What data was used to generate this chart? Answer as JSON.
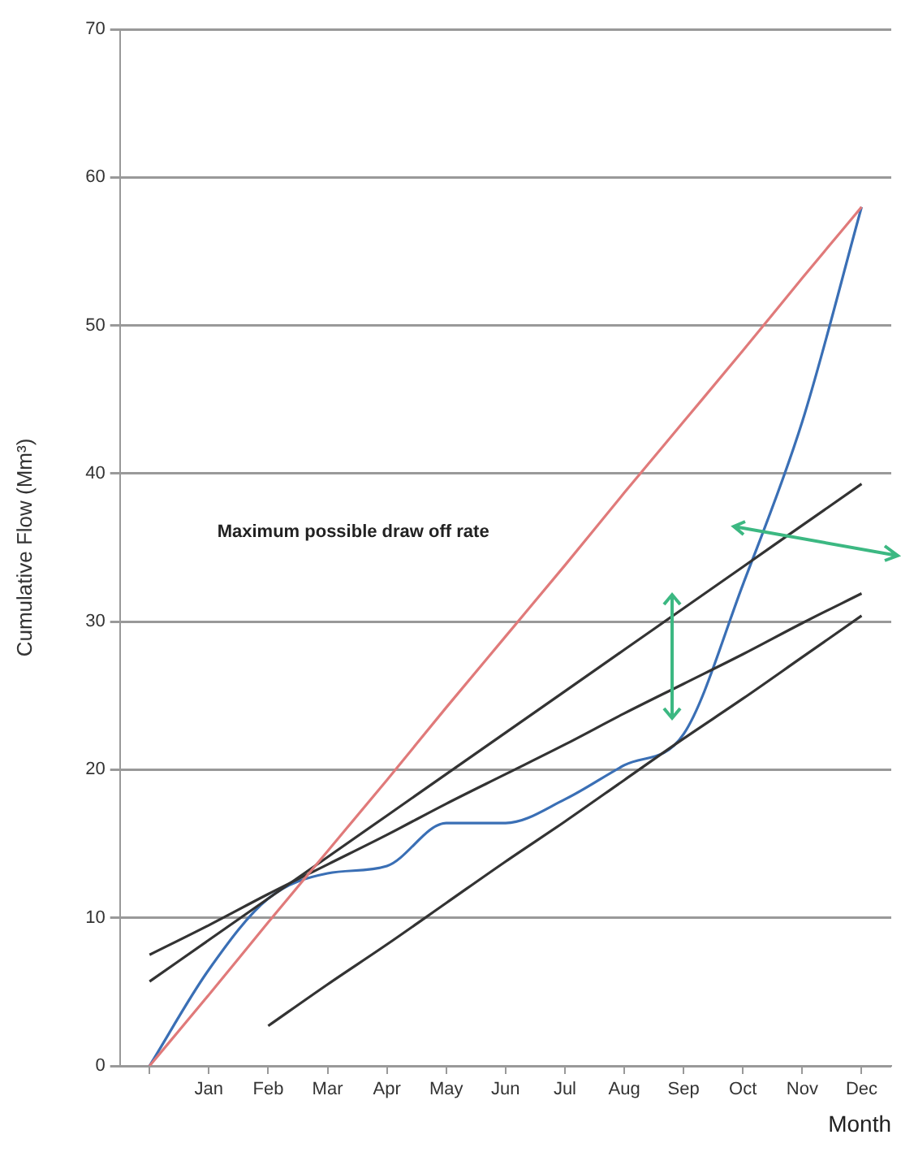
{
  "chart_data": {
    "type": "line",
    "xlabel": "Month",
    "ylabel": "Cumulative Flow (Mm³)",
    "categories": [
      null,
      "Jan",
      "Feb",
      "Mar",
      "Apr",
      "May",
      "Jun",
      "Jul",
      "Aug",
      "Sep",
      "Oct",
      "Nov",
      "Dec"
    ],
    "series": [
      {
        "color": "#e07a7a",
        "values": [
          0,
          4.8,
          9.7,
          14.5,
          19.3,
          24.2,
          29,
          33.8,
          38.7,
          43.5,
          48.3,
          53.2,
          58
        ]
      },
      {
        "color": "#333333",
        "values": [
          5.7,
          8.5,
          11.3,
          14.1,
          16.9,
          19.7,
          22.5,
          25.3,
          28.1,
          30.9,
          33.7,
          36.5,
          39.3
        ]
      },
      {
        "color": "#333333",
        "values": [
          7.5,
          9.5,
          11.6,
          13.6,
          15.6,
          17.7,
          19.7,
          21.7,
          23.8,
          25.8,
          27.8,
          29.9,
          31.9
        ]
      },
      {
        "color": "#333333",
        "values": [
          null,
          null,
          2.7,
          5.5,
          8.2,
          11.0,
          13.8,
          16.5,
          19.3,
          22.1,
          24.8,
          27.6,
          30.4
        ]
      },
      {
        "color": "#3a6fb5",
        "values": [
          0,
          6.5,
          11.3,
          13.0,
          13.5,
          16.4,
          16.4,
          18.0,
          20.3,
          22.4,
          32.5,
          43.5,
          58
        ]
      }
    ],
    "ylim": [
      0,
      70
    ],
    "yticks": [
      0,
      10,
      20,
      30,
      40,
      50,
      60,
      70
    ],
    "grid": "y",
    "legend": false,
    "marker": "none",
    "line_style": "solid",
    "annotations": [
      "Maximum possible draw off rate"
    ]
  }
}
